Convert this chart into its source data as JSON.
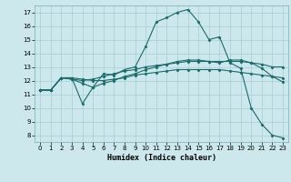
{
  "xlabel": "Humidex (Indice chaleur)",
  "bg_color": "#cce8ec",
  "line_color": "#1a6b6b",
  "grid_color": "#a8cdd4",
  "xlim": [
    -0.5,
    23.5
  ],
  "ylim": [
    7.5,
    17.5
  ],
  "yticks": [
    8,
    9,
    10,
    11,
    12,
    13,
    14,
    15,
    16,
    17
  ],
  "xticks": [
    0,
    1,
    2,
    3,
    4,
    5,
    6,
    7,
    8,
    9,
    10,
    11,
    12,
    13,
    14,
    15,
    16,
    17,
    18,
    19,
    20,
    21,
    22,
    23
  ],
  "lines": [
    {
      "x": [
        0,
        1,
        2,
        3,
        4,
        5,
        6,
        7,
        8,
        9,
        10,
        11,
        12,
        13,
        14,
        15,
        16,
        17,
        18,
        19,
        20,
        21,
        22,
        23
      ],
      "y": [
        11.3,
        11.3,
        12.2,
        12.2,
        10.3,
        11.5,
        12.5,
        12.4,
        12.8,
        13.0,
        14.5,
        16.3,
        16.6,
        17.0,
        17.2,
        16.3,
        15.0,
        15.2,
        13.3,
        12.9,
        10.0,
        8.8,
        8.0,
        7.8
      ]
    },
    {
      "x": [
        0,
        1,
        2,
        3,
        4,
        5,
        6,
        7,
        8,
        9,
        10,
        11,
        12,
        13,
        14,
        15,
        16,
        17,
        18,
        19,
        20,
        21,
        22,
        23
      ],
      "y": [
        11.3,
        11.3,
        12.2,
        12.1,
        12.0,
        12.1,
        12.3,
        12.5,
        12.7,
        12.8,
        13.0,
        13.1,
        13.2,
        13.3,
        13.4,
        13.4,
        13.4,
        13.4,
        13.4,
        13.4,
        13.3,
        13.2,
        13.0,
        13.0
      ]
    },
    {
      "x": [
        0,
        1,
        2,
        3,
        4,
        5,
        6,
        7,
        8,
        9,
        10,
        11,
        12,
        13,
        14,
        15,
        16,
        17,
        18,
        19,
        20,
        21,
        22,
        23
      ],
      "y": [
        11.3,
        11.3,
        12.2,
        12.2,
        12.1,
        12.0,
        12.0,
        12.1,
        12.2,
        12.4,
        12.5,
        12.6,
        12.7,
        12.8,
        12.8,
        12.8,
        12.8,
        12.8,
        12.7,
        12.6,
        12.5,
        12.4,
        12.3,
        12.2
      ]
    },
    {
      "x": [
        0,
        1,
        2,
        3,
        4,
        5,
        6,
        7,
        8,
        9,
        10,
        11,
        12,
        13,
        14,
        15,
        16,
        17,
        18,
        19,
        20,
        21,
        22,
        23
      ],
      "y": [
        11.3,
        11.3,
        12.2,
        12.1,
        11.8,
        11.5,
        11.8,
        12.0,
        12.3,
        12.5,
        12.8,
        13.0,
        13.2,
        13.4,
        13.5,
        13.5,
        13.4,
        13.3,
        13.5,
        13.5,
        13.3,
        12.9,
        12.3,
        11.9
      ]
    }
  ]
}
